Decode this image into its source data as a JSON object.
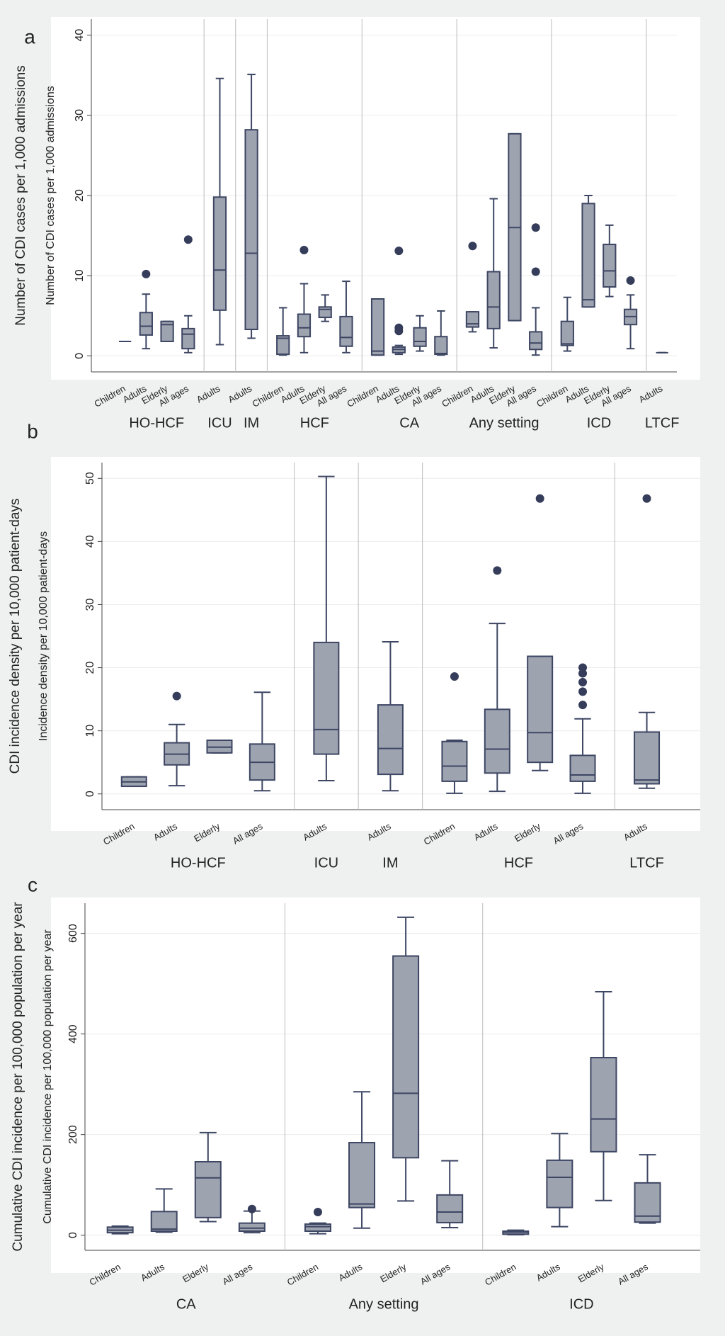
{
  "chart_data": [
    {
      "type": "box",
      "label": "a",
      "outer_ylabel": "Number of CDI cases per 1,000 admissions",
      "ylabel": "Number of CDI cases per 1,000 admissions",
      "ylim": [
        -2,
        42
      ],
      "yticks": [
        0,
        10,
        20,
        30,
        40
      ],
      "grid": true,
      "color": "#9ea3b0",
      "edge_color": "#3d4663",
      "groups": [
        {
          "name": "HO-HCF",
          "categories": [
            "Children",
            "Adults",
            "Elderly",
            "All ages"
          ],
          "boxes": [
            {
              "whislo": 1.8,
              "q1": 1.8,
              "med": 1.8,
              "q3": 1.8,
              "whishi": 1.8,
              "fliers": []
            },
            {
              "whislo": 0.9,
              "q1": 2.6,
              "med": 3.7,
              "q3": 5.4,
              "whishi": 7.7,
              "fliers": [
                10.2
              ]
            },
            {
              "whislo": 1.8,
              "q1": 1.8,
              "med": 3.9,
              "q3": 4.3,
              "whishi": 4.3,
              "fliers": []
            },
            {
              "whislo": 0.4,
              "q1": 0.9,
              "med": 2.7,
              "q3": 3.4,
              "whishi": 5.0,
              "fliers": [
                14.5
              ]
            }
          ]
        },
        {
          "name": "ICU",
          "categories": [
            "Adults"
          ],
          "boxes": [
            {
              "whislo": 1.4,
              "q1": 5.7,
              "med": 10.7,
              "q3": 19.8,
              "whishi": 34.6,
              "fliers": []
            }
          ]
        },
        {
          "name": "IM",
          "categories": [
            "Adults"
          ],
          "boxes": [
            {
              "whislo": 2.2,
              "q1": 3.3,
              "med": 12.8,
              "q3": 28.2,
              "whishi": 35.1,
              "fliers": []
            }
          ]
        },
        {
          "name": "HCF",
          "categories": [
            "Children",
            "Adults",
            "Elderly",
            "All ages"
          ],
          "boxes": [
            {
              "whislo": 0.1,
              "q1": 0.2,
              "med": 2.2,
              "q3": 2.5,
              "whishi": 6.0,
              "fliers": []
            },
            {
              "whislo": 0.4,
              "q1": 2.4,
              "med": 3.5,
              "q3": 5.2,
              "whishi": 9.0,
              "fliers": [
                13.2
              ]
            },
            {
              "whislo": 4.3,
              "q1": 4.8,
              "med": 5.8,
              "q3": 6.1,
              "whishi": 7.6,
              "fliers": []
            },
            {
              "whislo": 0.4,
              "q1": 1.2,
              "med": 2.3,
              "q3": 4.9,
              "whishi": 9.3,
              "fliers": []
            }
          ]
        },
        {
          "name": "CA",
          "categories": [
            "Children",
            "Adults",
            "Elderly",
            "All ages"
          ],
          "boxes": [
            {
              "whislo": 0.1,
              "q1": 0.1,
              "med": 0.6,
              "q3": 7.1,
              "whishi": 7.1,
              "fliers": []
            },
            {
              "whislo": 0.2,
              "q1": 0.4,
              "med": 0.8,
              "q3": 1.1,
              "whishi": 1.3,
              "fliers": [
                3.1,
                3.5,
                13.1
              ]
            },
            {
              "whislo": 0.6,
              "q1": 1.2,
              "med": 1.8,
              "q3": 3.5,
              "whishi": 5.0,
              "fliers": []
            },
            {
              "whislo": 0.1,
              "q1": 0.2,
              "med": 0.3,
              "q3": 2.4,
              "whishi": 5.6,
              "fliers": []
            }
          ]
        },
        {
          "name": "Any setting",
          "categories": [
            "Children",
            "Adults",
            "Elderly",
            "All ages"
          ],
          "boxes": [
            {
              "whislo": 3.0,
              "q1": 3.6,
              "med": 4.0,
              "q3": 5.5,
              "whishi": 5.5,
              "fliers": [
                13.7
              ]
            },
            {
              "whislo": 1.0,
              "q1": 3.4,
              "med": 6.1,
              "q3": 10.5,
              "whishi": 19.6,
              "fliers": []
            },
            {
              "whislo": 4.4,
              "q1": 4.4,
              "med": 16.0,
              "q3": 27.7,
              "whishi": 27.7,
              "fliers": []
            },
            {
              "whislo": 0.1,
              "q1": 0.8,
              "med": 1.6,
              "q3": 3.0,
              "whishi": 6.0,
              "fliers": [
                10.5,
                16.0
              ]
            }
          ]
        },
        {
          "name": "ICD",
          "categories": [
            "Children",
            "Adults",
            "Elderly",
            "All ages"
          ],
          "boxes": [
            {
              "whislo": 0.6,
              "q1": 1.3,
              "med": 1.5,
              "q3": 4.3,
              "whishi": 7.3,
              "fliers": []
            },
            {
              "whislo": 6.1,
              "q1": 6.1,
              "med": 7.0,
              "q3": 19.0,
              "whishi": 20.0,
              "fliers": []
            },
            {
              "whislo": 7.4,
              "q1": 8.6,
              "med": 10.6,
              "q3": 13.9,
              "whishi": 16.3,
              "fliers": []
            },
            {
              "whislo": 0.9,
              "q1": 3.9,
              "med": 4.9,
              "q3": 5.8,
              "whishi": 7.6,
              "fliers": [
                9.4
              ]
            }
          ]
        },
        {
          "name": "LTCF",
          "categories": [
            "Adults"
          ],
          "boxes": [
            {
              "whislo": 0.4,
              "q1": 0.4,
              "med": 0.4,
              "q3": 0.4,
              "whishi": 0.4,
              "fliers": []
            }
          ]
        }
      ]
    },
    {
      "type": "box",
      "label": "b",
      "outer_ylabel": "CDI incidence density  per 10,000 patient-days",
      "ylabel": "Incidence density per 10,000 patient-days",
      "ylim": [
        -2.5,
        52.5
      ],
      "yticks": [
        0,
        10,
        20,
        30,
        40,
        50
      ],
      "grid": true,
      "color": "#9ea3b0",
      "edge_color": "#3d4663",
      "groups": [
        {
          "name": "HO-HCF",
          "categories": [
            "Children",
            "Adults",
            "Elderly",
            "All ages"
          ],
          "boxes": [
            {
              "whislo": 1.2,
              "q1": 1.2,
              "med": 1.9,
              "q3": 2.7,
              "whishi": 2.7,
              "fliers": []
            },
            {
              "whislo": 1.3,
              "q1": 4.6,
              "med": 6.3,
              "q3": 8.1,
              "whishi": 11.0,
              "fliers": [
                15.5
              ]
            },
            {
              "whislo": 6.5,
              "q1": 6.5,
              "med": 7.4,
              "q3": 8.5,
              "whishi": 8.5,
              "fliers": []
            },
            {
              "whislo": 0.5,
              "q1": 2.2,
              "med": 5.0,
              "q3": 7.9,
              "whishi": 16.1,
              "fliers": []
            }
          ]
        },
        {
          "name": "ICU",
          "categories": [
            "Adults"
          ],
          "boxes": [
            {
              "whislo": 2.1,
              "q1": 6.3,
              "med": 10.2,
              "q3": 24.0,
              "whishi": 50.3,
              "fliers": []
            }
          ]
        },
        {
          "name": "IM",
          "categories": [
            "Adults"
          ],
          "boxes": [
            {
              "whislo": 0.5,
              "q1": 3.1,
              "med": 7.2,
              "q3": 14.1,
              "whishi": 24.1,
              "fliers": []
            }
          ]
        },
        {
          "name": "HCF",
          "categories": [
            "Children",
            "Adults",
            "Elderly",
            "All ages"
          ],
          "boxes": [
            {
              "whislo": 0.1,
              "q1": 2.0,
              "med": 4.4,
              "q3": 8.3,
              "whishi": 8.5,
              "fliers": [
                18.6
              ]
            },
            {
              "whislo": 0.4,
              "q1": 3.3,
              "med": 7.1,
              "q3": 13.4,
              "whishi": 27.0,
              "fliers": [
                35.4
              ]
            },
            {
              "whislo": 3.7,
              "q1": 5.0,
              "med": 9.7,
              "q3": 21.8,
              "whishi": 21.8,
              "fliers": [
                46.8
              ]
            },
            {
              "whislo": 0.1,
              "q1": 2.0,
              "med": 3.0,
              "q3": 6.1,
              "whishi": 11.9,
              "fliers": [
                14.1,
                16.2,
                17.7,
                19.1,
                20.0
              ]
            }
          ]
        },
        {
          "name": "LTCF",
          "categories": [
            "Adults"
          ],
          "boxes": [
            {
              "whislo": 0.9,
              "q1": 1.6,
              "med": 2.2,
              "q3": 9.8,
              "whishi": 12.9,
              "fliers": [
                46.8
              ]
            }
          ]
        }
      ]
    },
    {
      "type": "box",
      "label": "c",
      "outer_ylabel": "Cumulative CDI  incidence per 100,000 population per year",
      "ylabel": "Cumulative CDI incidence per 100,000 population per year",
      "ylim": [
        -30,
        660
      ],
      "yticks": [
        0,
        200,
        400,
        600
      ],
      "grid": true,
      "color": "#9ea3b0",
      "edge_color": "#3d4663",
      "groups": [
        {
          "name": "CA",
          "categories": [
            "Children",
            "Adults",
            "Elderly",
            "All ages"
          ],
          "boxes": [
            {
              "whislo": 3,
              "q1": 5,
              "med": 10,
              "q3": 16,
              "whishi": 18,
              "fliers": []
            },
            {
              "whislo": 6,
              "q1": 8,
              "med": 12,
              "q3": 47,
              "whishi": 92,
              "fliers": []
            },
            {
              "whislo": 27,
              "q1": 35,
              "med": 114,
              "q3": 146,
              "whishi": 204,
              "fliers": []
            },
            {
              "whislo": 5,
              "q1": 8,
              "med": 14,
              "q3": 24,
              "whishi": 48,
              "fliers": [
                52
              ]
            }
          ]
        },
        {
          "name": "Any setting",
          "categories": [
            "Children",
            "Adults",
            "Elderly",
            "All ages"
          ],
          "boxes": [
            {
              "whislo": 3,
              "q1": 8,
              "med": 17,
              "q3": 22,
              "whishi": 24,
              "fliers": [
                46
              ]
            },
            {
              "whislo": 14,
              "q1": 55,
              "med": 62,
              "q3": 184,
              "whishi": 285,
              "fliers": []
            },
            {
              "whislo": 68,
              "q1": 154,
              "med": 282,
              "q3": 555,
              "whishi": 632,
              "fliers": []
            },
            {
              "whislo": 15,
              "q1": 25,
              "med": 46,
              "q3": 80,
              "whishi": 148,
              "fliers": []
            }
          ]
        },
        {
          "name": "ICD",
          "categories": [
            "Children",
            "Adults",
            "Elderly",
            "All ages"
          ],
          "boxes": [
            {
              "whislo": 1,
              "q1": 2,
              "med": 6,
              "q3": 8,
              "whishi": 10,
              "fliers": []
            },
            {
              "whislo": 17,
              "q1": 55,
              "med": 115,
              "q3": 149,
              "whishi": 202,
              "fliers": []
            },
            {
              "whislo": 69,
              "q1": 166,
              "med": 231,
              "q3": 353,
              "whishi": 484,
              "fliers": []
            },
            {
              "whislo": 24,
              "q1": 26,
              "med": 38,
              "q3": 104,
              "whishi": 160,
              "fliers": []
            }
          ]
        }
      ]
    }
  ]
}
